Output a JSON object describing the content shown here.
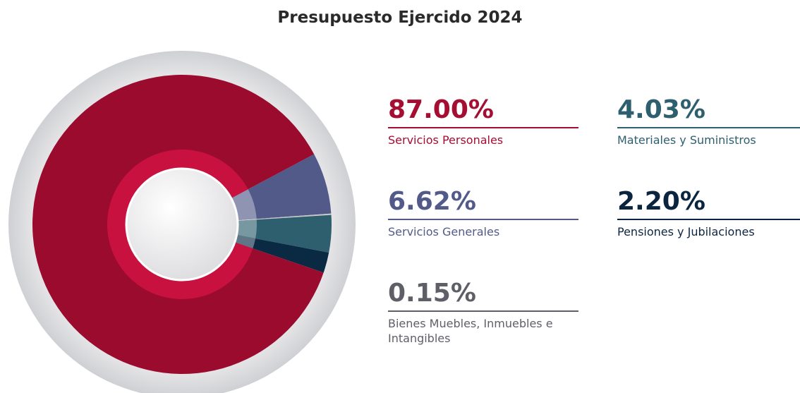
{
  "chart_data": {
    "type": "pie",
    "title": "Presupuesto Ejercido 2024",
    "categories": [
      "Servicios Personales",
      "Servicios Generales",
      "Bienes Muebles, Inmuebles e Intangibles",
      "Materiales y Suministros",
      "Pensiones y Jubilaciones"
    ],
    "values": [
      87.0,
      6.62,
      0.15,
      4.03,
      2.2
    ],
    "value_labels": [
      "87.00%",
      "6.62%",
      "0.15%",
      "4.03%",
      "2.20%"
    ],
    "colors": [
      "#9b0b2e",
      "#525a8a",
      "#c8c8c8",
      "#2e5f6e",
      "#0a2a44"
    ],
    "label_colors": [
      "#a50d33",
      "#525a8a",
      "#5f5f68",
      "#2e5f6e",
      "#0b2540"
    ]
  }
}
